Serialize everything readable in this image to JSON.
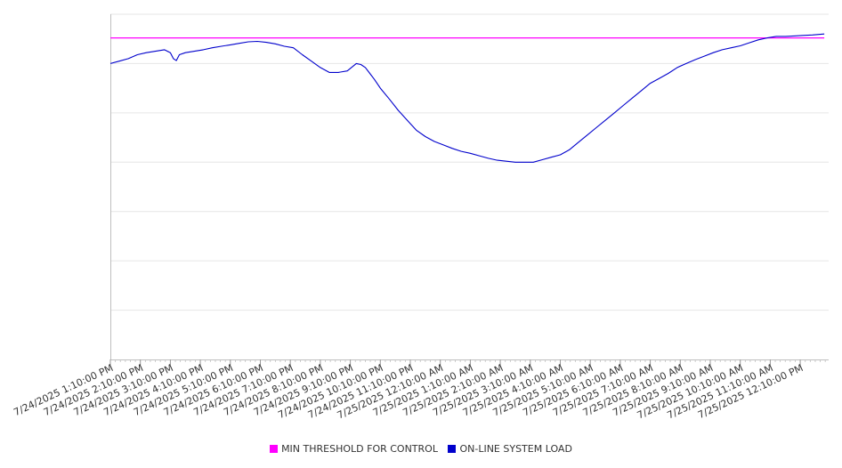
{
  "chart_data": {
    "type": "line",
    "title": "",
    "xlabel": "",
    "ylabel": "",
    "grid": true,
    "legend_position": "bottom",
    "x_tick_labels": [
      "7/24/2025 1:10:00 PM",
      "7/24/2025 2:10:00 PM",
      "7/24/2025 3:10:00 PM",
      "7/24/2025 4:10:00 PM",
      "7/24/2025 5:10:00 PM",
      "7/24/2025 6:10:00 PM",
      "7/24/2025 7:10:00 PM",
      "7/24/2025 8:10:00 PM",
      "7/24/2025 9:10:00 PM",
      "7/24/2025 10:10:00 PM",
      "7/24/2025 11:10:00 PM",
      "7/25/2025 12:10:00 AM",
      "7/25/2025 1:10:00 AM",
      "7/25/2025 2:10:00 AM",
      "7/25/2025 3:10:00 AM",
      "7/25/2025 4:10:00 AM",
      "7/25/2025 5:10:00 AM",
      "7/25/2025 6:10:00 AM",
      "7/25/2025 7:10:00 AM",
      "7/25/2025 8:10:00 AM",
      "7/25/2025 9:10:00 AM",
      "7/25/2025 10:10:00 AM",
      "7/25/2025 11:10:00 AM",
      "7/25/2025 12:10:00 PM"
    ],
    "ylim": [
      0,
      7
    ],
    "series": [
      {
        "name": "MIN THRESHOLD FOR CONTROL",
        "color": "#ff00ff",
        "x": [
          0,
          23.8
        ],
        "values": [
          6.52,
          6.52
        ]
      },
      {
        "name": "ON-LINE SYSTEM LOAD",
        "color": "#0000cc",
        "x": [
          0,
          0.3,
          0.6,
          0.9,
          1.2,
          1.5,
          1.8,
          2.0,
          2.1,
          2.2,
          2.3,
          2.5,
          2.8,
          3.1,
          3.4,
          3.7,
          4.0,
          4.3,
          4.6,
          4.9,
          5.2,
          5.5,
          5.8,
          6.1,
          6.4,
          6.7,
          7.0,
          7.3,
          7.6,
          7.9,
          8.2,
          8.35,
          8.5,
          8.65,
          8.8,
          9.0,
          9.3,
          9.6,
          9.9,
          10.2,
          10.5,
          10.8,
          11.1,
          11.4,
          11.7,
          12.0,
          12.3,
          12.6,
          12.9,
          13.2,
          13.5,
          13.8,
          14.1,
          14.4,
          14.7,
          15.0,
          15.3,
          15.6,
          15.9,
          16.2,
          16.5,
          16.8,
          17.1,
          17.4,
          17.7,
          18.0,
          18.3,
          18.6,
          18.9,
          19.2,
          19.5,
          19.8,
          20.1,
          20.4,
          20.7,
          21.0,
          21.3,
          21.6,
          21.9,
          22.2,
          22.5,
          22.8,
          23.1,
          23.4,
          23.8
        ],
        "values": [
          6.0,
          6.05,
          6.1,
          6.18,
          6.22,
          6.25,
          6.28,
          6.22,
          6.1,
          6.06,
          6.18,
          6.22,
          6.25,
          6.28,
          6.32,
          6.35,
          6.38,
          6.41,
          6.44,
          6.45,
          6.43,
          6.4,
          6.35,
          6.32,
          6.18,
          6.05,
          5.92,
          5.82,
          5.82,
          5.85,
          6.0,
          5.98,
          5.92,
          5.8,
          5.68,
          5.5,
          5.28,
          5.05,
          4.85,
          4.65,
          4.52,
          4.42,
          4.35,
          4.28,
          4.22,
          4.18,
          4.13,
          4.08,
          4.04,
          4.02,
          4.0,
          4.0,
          4.0,
          4.05,
          4.1,
          4.15,
          4.25,
          4.4,
          4.55,
          4.7,
          4.85,
          5.0,
          5.15,
          5.3,
          5.45,
          5.6,
          5.7,
          5.8,
          5.92,
          6.0,
          6.08,
          6.15,
          6.22,
          6.28,
          6.32,
          6.36,
          6.42,
          6.48,
          6.52,
          6.55,
          6.55,
          6.56,
          6.57,
          6.58,
          6.6
        ]
      }
    ]
  }
}
